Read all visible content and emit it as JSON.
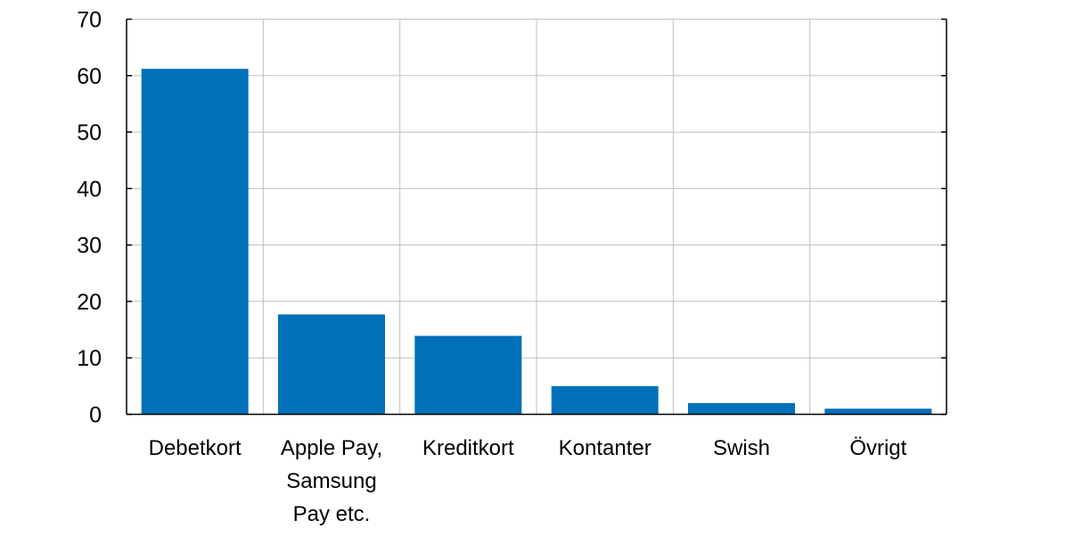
{
  "chart_data": {
    "type": "bar",
    "title": "",
    "xlabel": "",
    "ylabel": "",
    "categories": [
      [
        "Debetkort"
      ],
      [
        "Apple Pay,",
        "Samsung",
        "Pay etc."
      ],
      [
        "Kreditkort"
      ],
      [
        "Kontanter"
      ],
      [
        "Swish"
      ],
      [
        "Övrigt"
      ]
    ],
    "values": [
      61.2,
      17.7,
      13.9,
      5.0,
      2.0,
      1.0
    ],
    "ylim": [
      0,
      70
    ],
    "yticks": [
      0,
      10,
      20,
      30,
      40,
      50,
      60,
      70
    ],
    "grid": true,
    "legend": "none",
    "bar_color": "#0070b8",
    "grid_color": "#bfbfbf"
  }
}
